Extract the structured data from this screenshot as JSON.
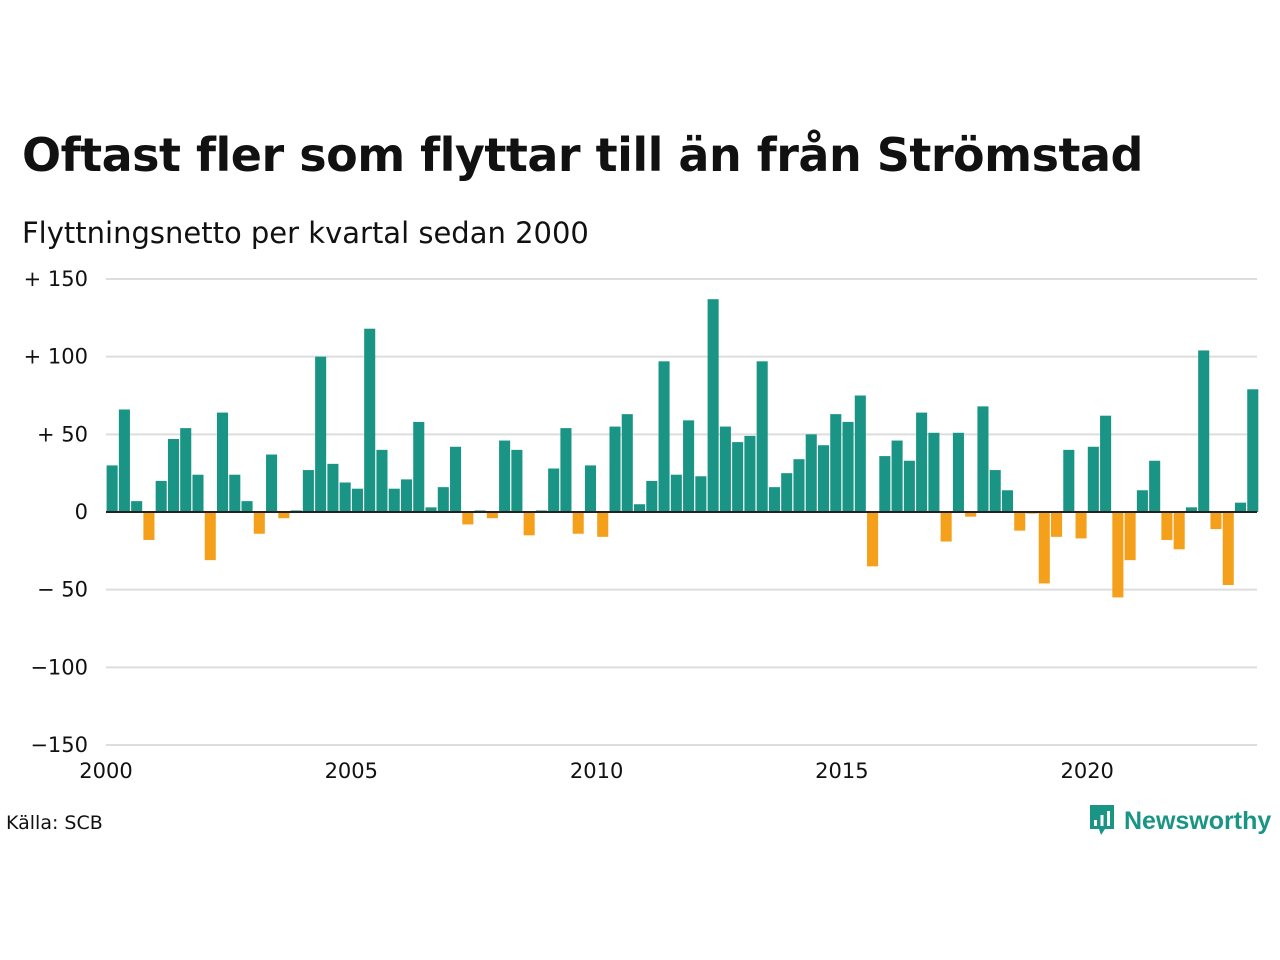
{
  "title": "Oftast fler som flyttar till än från Strömstad",
  "subtitle": "Flyttningsnetto per kvartal sedan 2000",
  "source": "Källa: SCB",
  "brand": {
    "name": "Newsworthy",
    "icon": "newsworthy-logo-icon"
  },
  "colors": {
    "positive": "#1a9585",
    "negative": "#f5a01a",
    "grid": "#dddddd",
    "zero_line": "#222222",
    "brand": "#1a9585"
  },
  "chart_data": {
    "type": "bar",
    "title": "Oftast fler som flyttar till än från Strömstad",
    "subtitle": "Flyttningsnetto per kvartal sedan 2000",
    "xlabel": "",
    "ylabel": "",
    "ylim": [
      -150,
      150
    ],
    "yticks": [
      {
        "value": 150,
        "label": "+ 150"
      },
      {
        "value": 100,
        "label": "+ 100"
      },
      {
        "value": 50,
        "label": "+  50"
      },
      {
        "value": 0,
        "label": "0"
      },
      {
        "value": -50,
        "label": "− 50"
      },
      {
        "value": -100,
        "label": "−100"
      },
      {
        "value": -150,
        "label": "−150"
      }
    ],
    "xticks": [
      {
        "year": 2000,
        "label": "2000"
      },
      {
        "year": 2005,
        "label": "2005"
      },
      {
        "year": 2010,
        "label": "2010"
      },
      {
        "year": 2015,
        "label": "2015"
      },
      {
        "year": 2020,
        "label": "2020"
      }
    ],
    "grid": true,
    "start_year": 2000,
    "categories": [
      "2000 Q1",
      "2000 Q2",
      "2000 Q3",
      "2000 Q4",
      "2001 Q1",
      "2001 Q2",
      "2001 Q3",
      "2001 Q4",
      "2002 Q1",
      "2002 Q2",
      "2002 Q3",
      "2002 Q4",
      "2003 Q1",
      "2003 Q2",
      "2003 Q3",
      "2003 Q4",
      "2004 Q1",
      "2004 Q2",
      "2004 Q3",
      "2004 Q4",
      "2005 Q1",
      "2005 Q2",
      "2005 Q3",
      "2005 Q4",
      "2006 Q1",
      "2006 Q2",
      "2006 Q3",
      "2006 Q4",
      "2007 Q1",
      "2007 Q2",
      "2007 Q3",
      "2007 Q4",
      "2008 Q1",
      "2008 Q2",
      "2008 Q3",
      "2008 Q4",
      "2009 Q1",
      "2009 Q2",
      "2009 Q3",
      "2009 Q4",
      "2010 Q1",
      "2010 Q2",
      "2010 Q3",
      "2010 Q4",
      "2011 Q1",
      "2011 Q2",
      "2011 Q3",
      "2011 Q4",
      "2012 Q1",
      "2012 Q2",
      "2012 Q3",
      "2012 Q4",
      "2013 Q1",
      "2013 Q2",
      "2013 Q3",
      "2013 Q4",
      "2014 Q1",
      "2014 Q2",
      "2014 Q3",
      "2014 Q4",
      "2015 Q1",
      "2015 Q2",
      "2015 Q3",
      "2015 Q4",
      "2016 Q1",
      "2016 Q2",
      "2016 Q3",
      "2016 Q4",
      "2017 Q1",
      "2017 Q2",
      "2017 Q3",
      "2017 Q4",
      "2018 Q1",
      "2018 Q2",
      "2018 Q3",
      "2018 Q4",
      "2019 Q1",
      "2019 Q2",
      "2019 Q3",
      "2019 Q4",
      "2020 Q1",
      "2020 Q2",
      "2020 Q3",
      "2020 Q4",
      "2021 Q1",
      "2021 Q2",
      "2021 Q3",
      "2021 Q4",
      "2022 Q1",
      "2022 Q2",
      "2022 Q3",
      "2022 Q4",
      "2023 Q1",
      "2023 Q2"
    ],
    "values": [
      30,
      66,
      7,
      -18,
      20,
      47,
      54,
      24,
      -31,
      64,
      24,
      7,
      -14,
      37,
      -4,
      1,
      27,
      100,
      31,
      19,
      15,
      118,
      40,
      15,
      21,
      58,
      3,
      16,
      42,
      -8,
      1,
      -4,
      46,
      40,
      -15,
      1,
      28,
      54,
      -14,
      30,
      -16,
      55,
      63,
      5,
      20,
      97,
      24,
      59,
      23,
      137,
      55,
      45,
      49,
      97,
      16,
      25,
      34,
      50,
      43,
      63,
      58,
      75,
      -35,
      36,
      46,
      33,
      64,
      51,
      -19,
      51,
      -3,
      68,
      27,
      14,
      -12,
      -1,
      -46,
      -16,
      40,
      -17,
      42,
      62,
      -55,
      -31,
      14,
      33,
      -18,
      -24,
      3,
      104,
      -11,
      -47,
      6,
      79
    ]
  }
}
